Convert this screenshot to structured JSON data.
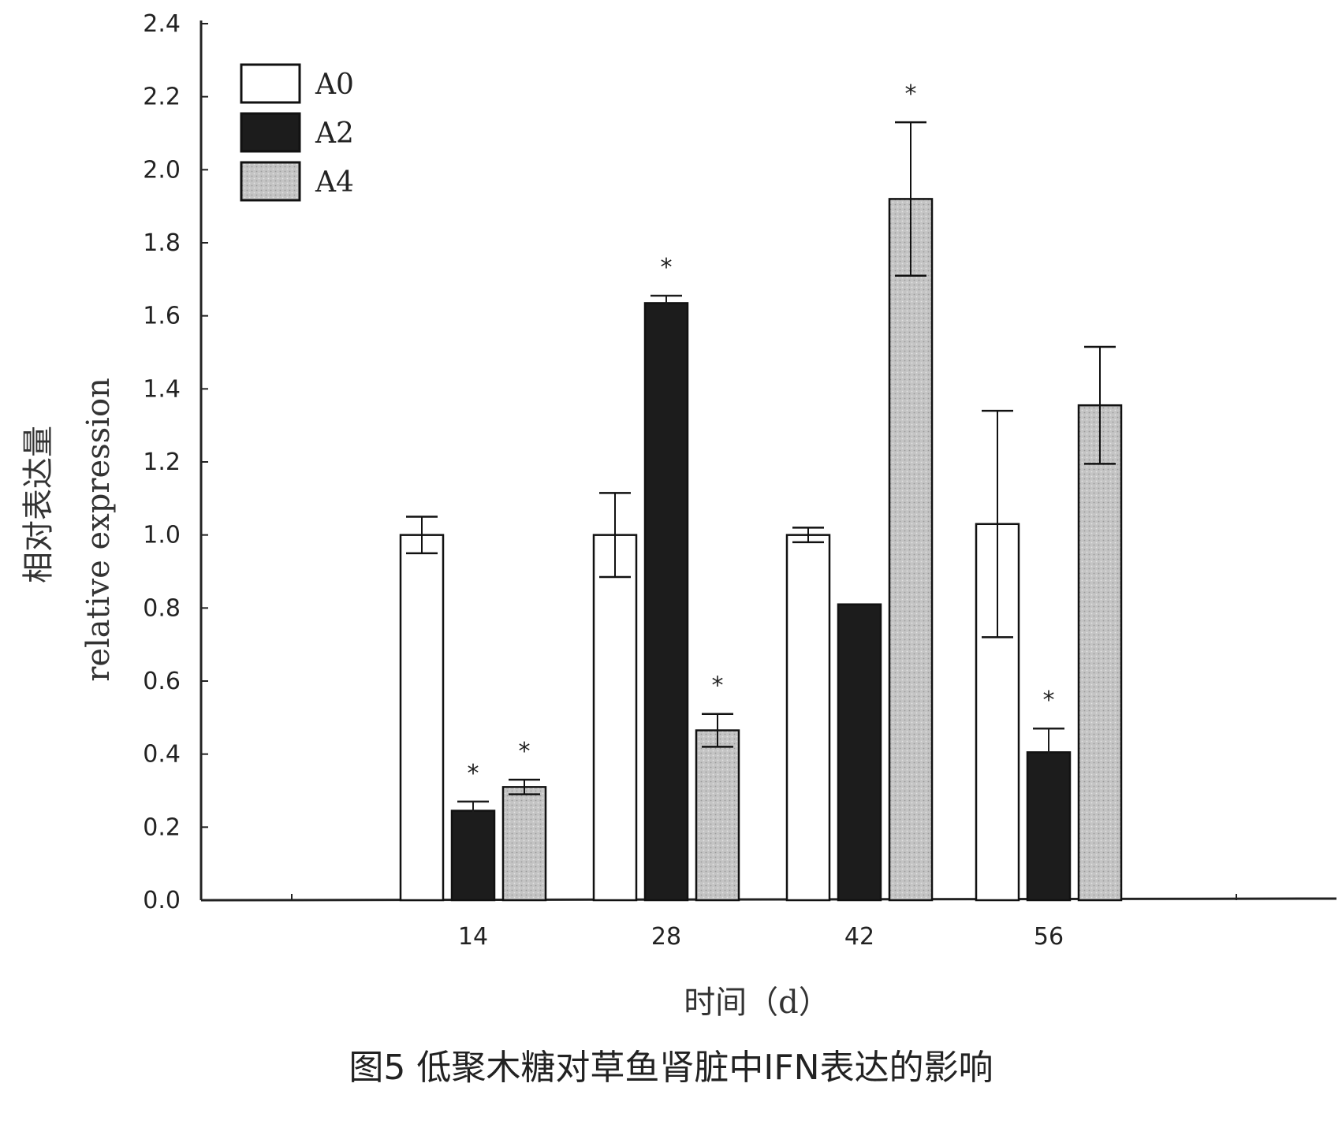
{
  "chart_data": {
    "type": "bar",
    "xlabel": "时间（d）",
    "ylabel_cn": "相对表达量",
    "ylabel_en": "relative expression",
    "ylim": [
      0.0,
      2.4
    ],
    "yticks": [
      "0.0",
      "0.2",
      "0.4",
      "0.6",
      "0.8",
      "1.0",
      "1.2",
      "1.4",
      "1.6",
      "1.8",
      "2.0",
      "2.2",
      "2.4"
    ],
    "categories": [
      "14",
      "28",
      "42",
      "56"
    ],
    "legend_position": "top-left",
    "grid": false,
    "series": [
      {
        "name": "A0",
        "color": "#ffffff",
        "values": [
          1.0,
          1.0,
          1.0,
          1.03
        ],
        "errors": [
          0.05,
          0.115,
          0.02,
          0.31
        ],
        "significance": [
          "",
          "",
          "",
          ""
        ]
      },
      {
        "name": "A2",
        "color": "#1c1c1c",
        "values": [
          0.245,
          1.635,
          0.81,
          0.405
        ],
        "errors": [
          0.025,
          0.02,
          0.0,
          0.065
        ],
        "significance": [
          "*",
          "*",
          "",
          "*"
        ]
      },
      {
        "name": "A4",
        "color": "#c4c4c4",
        "values": [
          0.31,
          0.465,
          1.92,
          1.355
        ],
        "errors": [
          0.02,
          0.045,
          0.21,
          0.16
        ],
        "significance": [
          "*",
          "*",
          "*",
          ""
        ]
      }
    ]
  },
  "caption": "图5 低聚木糖对草鱼肾脏中IFN表达的影响"
}
